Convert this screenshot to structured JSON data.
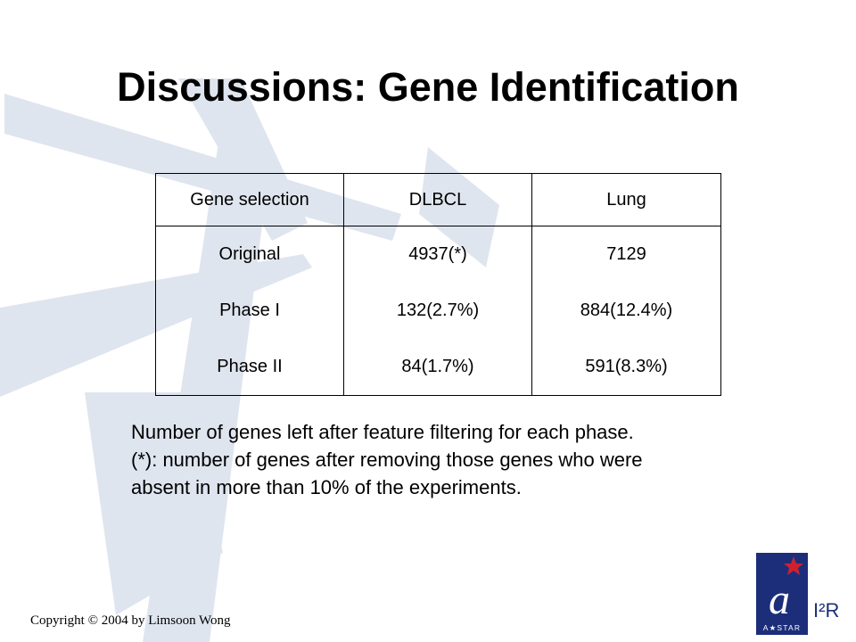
{
  "slide": {
    "title": "Discussions: Gene Identification",
    "table": {
      "headers": [
        "Gene selection",
        "DLBCL",
        "Lung"
      ],
      "rows": [
        [
          "Original",
          "4937(*)",
          "7129"
        ],
        [
          "Phase I",
          "132(2.7%)",
          "884(12.4%)"
        ],
        [
          "Phase II",
          "84(1.7%)",
          "591(8.3%)"
        ]
      ]
    },
    "caption_lines": [
      "Number of genes left after feature filtering for each phase.",
      "(*): number of genes after removing those genes who were",
      "absent in more than 10% of the experiments."
    ],
    "copyright": "Copyright © 2004 by Limsoon Wong",
    "logo": {
      "mark_text": "a",
      "star_text": "A★STAR",
      "i2r_text": "I²R"
    },
    "colors": {
      "watermark": "#dfe5ef",
      "logo_blue": "#1c2e7a",
      "logo_red": "#d0202f"
    }
  }
}
